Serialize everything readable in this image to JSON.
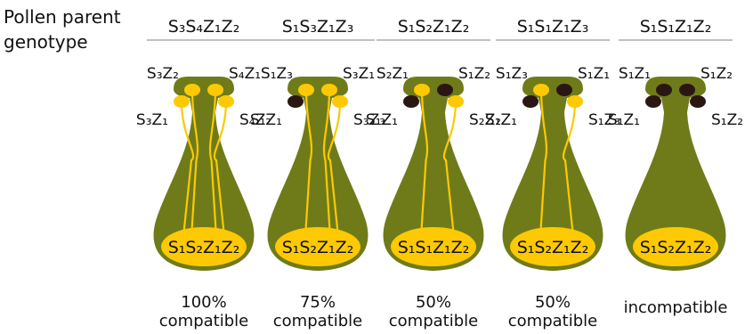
{
  "header_label_line1": "Pollen parent",
  "header_label_line2": "genotype",
  "colors": {
    "style_green": "#6f7b19",
    "ovary_yellow": "#fdc904",
    "compatible_pollen": "#fdc904",
    "incompatible_pollen": "#2a1612",
    "divider": "#9a9a9a"
  },
  "panels": [
    {
      "pollen_genotype": "S₃S₄Z₁Z₂",
      "pistil_genotype": "S₁S₂Z₁Z₂",
      "grains": [
        {
          "label": "S₃Z₂",
          "status": "compatible"
        },
        {
          "label": "S₄Z₁",
          "status": "compatible"
        },
        {
          "label": "S₃Z₁",
          "status": "compatible"
        },
        {
          "label": "S₄Z₂",
          "status": "compatible"
        }
      ],
      "outcome_line1": "100%",
      "outcome_line2": "compatible",
      "compatibility_percent": 100
    },
    {
      "pollen_genotype": "S₁S₃Z₁Z₃",
      "pistil_genotype": "S₁S₂Z₁Z₂",
      "grains": [
        {
          "label": "S₁Z₃",
          "status": "compatible"
        },
        {
          "label": "S₃Z₁",
          "status": "compatible"
        },
        {
          "label": "S₁Z₁",
          "status": "incompatible"
        },
        {
          "label": "S₃Z₃",
          "status": "compatible"
        }
      ],
      "outcome_line1": "75%",
      "outcome_line2": "compatible",
      "compatibility_percent": 75
    },
    {
      "pollen_genotype": "S₁S₂Z₁Z₂",
      "pistil_genotype": "S₁S₁Z₁Z₂",
      "grains": [
        {
          "label": "S₂Z₁",
          "status": "compatible"
        },
        {
          "label": "S₁Z₂",
          "status": "incompatible"
        },
        {
          "label": "S₁Z₁",
          "status": "incompatible"
        },
        {
          "label": "S₂Z₂",
          "status": "compatible"
        }
      ],
      "outcome_line1": "50%",
      "outcome_line2": "compatible",
      "compatibility_percent": 50
    },
    {
      "pollen_genotype": "S₁S₁Z₁Z₃",
      "pistil_genotype": "S₁S₂Z₁Z₂",
      "grains": [
        {
          "label": "S₁Z₃",
          "status": "compatible"
        },
        {
          "label": "S₁Z₁",
          "status": "incompatible"
        },
        {
          "label": "S₁Z₁",
          "status": "incompatible"
        },
        {
          "label": "S₁Z₃",
          "status": "compatible"
        }
      ],
      "outcome_line1": "50%",
      "outcome_line2": "compatible",
      "compatibility_percent": 50
    },
    {
      "pollen_genotype": "S₁S₁Z₁Z₂",
      "pistil_genotype": "S₁S₂Z₁Z₂",
      "grains": [
        {
          "label": "S₁Z₁",
          "status": "incompatible"
        },
        {
          "label": "S₁Z₂",
          "status": "incompatible"
        },
        {
          "label": "S₁Z₁",
          "status": "incompatible"
        },
        {
          "label": "S₁Z₂",
          "status": "incompatible"
        }
      ],
      "outcome_line1": "",
      "outcome_line2": "incompatible",
      "compatibility_percent": 0
    }
  ]
}
